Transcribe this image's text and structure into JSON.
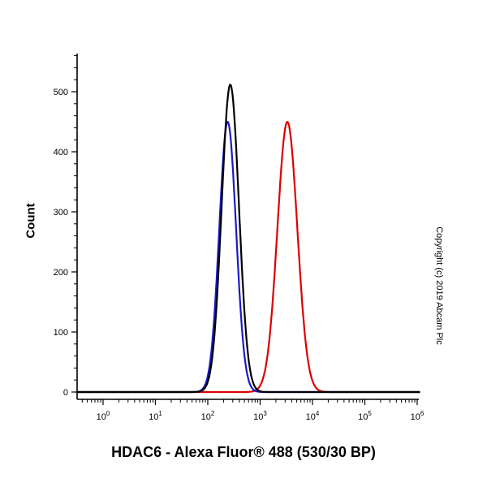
{
  "copyright": "Copyright (c) 2019 Abcam Plc",
  "chart_data": {
    "type": "line",
    "title": "HDAC6 - Alexa Fluor® 488 (530/30 BP)",
    "ylabel": "Count",
    "xlabel": "",
    "x_scale": "log10",
    "x_base": 10,
    "x_tick_exponents": [
      0,
      1,
      2,
      3,
      4,
      5,
      6
    ],
    "xlim_log10": [
      -0.5,
      6.05
    ],
    "y_ticks": [
      0,
      100,
      200,
      300,
      400,
      500
    ],
    "y_minor_step": 20,
    "ylim": [
      0,
      560
    ],
    "grid": false,
    "legend": "none",
    "series": [
      {
        "name": "red",
        "color": "#dd0000",
        "peak_count": 450,
        "peak_x": 3300,
        "mean_log10": 3.52,
        "sigma_log10": 0.19
      },
      {
        "name": "blue",
        "color": "#1a1acc",
        "peak_count": 450,
        "peak_x": 240,
        "mean_log10": 2.38,
        "sigma_log10": 0.16
      },
      {
        "name": "black",
        "color": "#000000",
        "peak_count": 512,
        "peak_x": 270,
        "mean_log10": 2.43,
        "sigma_log10": 0.165
      }
    ]
  }
}
